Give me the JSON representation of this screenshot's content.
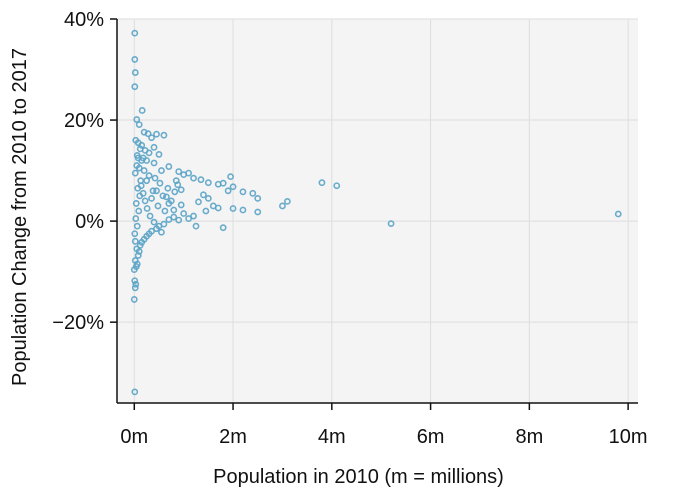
{
  "chart_data": {
    "type": "scatter",
    "title": "",
    "xlabel": "Population in 2010 (m = millions)",
    "ylabel": "Population Change from 2010 to 2017",
    "xlim": [
      -0.35,
      10.2
    ],
    "ylim": [
      -36,
      40
    ],
    "x_ticks": [
      0,
      2,
      4,
      6,
      8,
      10
    ],
    "x_tick_labels": [
      "0m",
      "2m",
      "4m",
      "6m",
      "8m",
      "10m"
    ],
    "y_ticks": [
      -20,
      0,
      20,
      40
    ],
    "y_tick_labels": [
      "−20%",
      "0%",
      "20%",
      "40%"
    ],
    "grid": true,
    "panel_background": "#f4f4f4",
    "grid_color": "#dddddd",
    "point_color": "#5aa3c6",
    "series": [
      {
        "points": [
          [
            0.01,
            37.2
          ],
          [
            0.01,
            32.0
          ],
          [
            0.02,
            29.4
          ],
          [
            0.01,
            26.6
          ],
          [
            0.16,
            21.9
          ],
          [
            0.05,
            20.1
          ],
          [
            0.1,
            19.1
          ],
          [
            0.2,
            17.6
          ],
          [
            0.28,
            17.3
          ],
          [
            0.45,
            17.2
          ],
          [
            0.6,
            17.0
          ],
          [
            0.35,
            16.5
          ],
          [
            0.03,
            16.0
          ],
          [
            0.08,
            15.5
          ],
          [
            0.15,
            15.0
          ],
          [
            0.4,
            14.6
          ],
          [
            0.12,
            14.3
          ],
          [
            0.22,
            14.0
          ],
          [
            0.3,
            13.5
          ],
          [
            0.5,
            13.2
          ],
          [
            0.06,
            13.0
          ],
          [
            0.18,
            12.5
          ],
          [
            0.25,
            12.0
          ],
          [
            0.4,
            11.5
          ],
          [
            0.7,
            10.8
          ],
          [
            0.1,
            10.5
          ],
          [
            0.55,
            10.0
          ],
          [
            0.9,
            9.8
          ],
          [
            1.0,
            9.2
          ],
          [
            1.1,
            9.5
          ],
          [
            1.2,
            8.5
          ],
          [
            1.35,
            8.2
          ],
          [
            0.85,
            8.0
          ],
          [
            1.5,
            7.6
          ],
          [
            1.7,
            7.3
          ],
          [
            1.8,
            7.5
          ],
          [
            1.95,
            8.8
          ],
          [
            2.0,
            6.8
          ],
          [
            1.9,
            6.0
          ],
          [
            2.2,
            5.8
          ],
          [
            2.4,
            5.5
          ],
          [
            2.5,
            4.5
          ],
          [
            1.4,
            5.2
          ],
          [
            1.5,
            4.5
          ],
          [
            1.3,
            3.8
          ],
          [
            1.6,
            3.0
          ],
          [
            1.7,
            2.6
          ],
          [
            2.0,
            2.5
          ],
          [
            2.2,
            2.2
          ],
          [
            2.5,
            1.8
          ],
          [
            1.2,
            1.0
          ],
          [
            1.45,
            2.0
          ],
          [
            1.8,
            -1.3
          ],
          [
            1.25,
            -1.0
          ],
          [
            1.1,
            0.5
          ],
          [
            1.0,
            1.5
          ],
          [
            0.95,
            3.2
          ],
          [
            0.8,
            2.2
          ],
          [
            0.7,
            3.5
          ],
          [
            0.65,
            4.8
          ],
          [
            3.0,
            3.0
          ],
          [
            3.1,
            3.9
          ],
          [
            3.8,
            7.6
          ],
          [
            4.1,
            7.0
          ],
          [
            5.2,
            -0.5
          ],
          [
            9.8,
            1.4
          ],
          [
            0.01,
            -33.8
          ],
          [
            0.0,
            -15.5
          ],
          [
            0.02,
            -13.2
          ],
          [
            0.03,
            -12.5
          ],
          [
            0.01,
            -11.8
          ],
          [
            0.0,
            -9.6
          ],
          [
            0.04,
            -9.0
          ],
          [
            0.06,
            -8.5
          ],
          [
            0.02,
            -7.8
          ],
          [
            0.08,
            -6.8
          ],
          [
            0.1,
            -6.0
          ],
          [
            0.05,
            -5.5
          ],
          [
            0.12,
            -4.8
          ],
          [
            0.15,
            -4.2
          ],
          [
            0.2,
            -3.6
          ],
          [
            0.25,
            -3.0
          ],
          [
            0.3,
            -2.5
          ],
          [
            0.35,
            -2.0
          ],
          [
            0.45,
            -1.5
          ],
          [
            0.5,
            -1.0
          ],
          [
            0.6,
            -0.6
          ],
          [
            0.55,
            -2.2
          ],
          [
            0.4,
            -0.2
          ],
          [
            0.7,
            0.3
          ],
          [
            0.8,
            0.8
          ],
          [
            0.9,
            0.2
          ],
          [
            0.02,
            -4.0
          ],
          [
            0.01,
            -2.5
          ],
          [
            0.06,
            -1.0
          ],
          [
            0.03,
            0.5
          ],
          [
            0.09,
            2.0
          ],
          [
            0.04,
            3.5
          ],
          [
            0.11,
            5.0
          ],
          [
            0.07,
            6.5
          ],
          [
            0.13,
            8.0
          ],
          [
            0.02,
            9.5
          ],
          [
            0.05,
            11.0
          ],
          [
            0.08,
            12.5
          ],
          [
            0.14,
            7.0
          ],
          [
            0.18,
            5.5
          ],
          [
            0.22,
            4.0
          ],
          [
            0.26,
            2.5
          ],
          [
            0.32,
            1.0
          ],
          [
            0.38,
            6.0
          ],
          [
            0.42,
            8.5
          ],
          [
            0.48,
            3.0
          ],
          [
            0.52,
            7.5
          ],
          [
            0.58,
            5.0
          ],
          [
            0.62,
            2.0
          ],
          [
            0.68,
            6.5
          ],
          [
            0.75,
            4.0
          ],
          [
            0.82,
            5.8
          ],
          [
            0.88,
            7.2
          ],
          [
            0.95,
            6.2
          ],
          [
            0.3,
            9.0
          ],
          [
            0.2,
            10.0
          ],
          [
            0.15,
            12.0
          ],
          [
            0.25,
            8.0
          ],
          [
            0.35,
            4.5
          ],
          [
            0.45,
            6.0
          ]
        ]
      }
    ]
  }
}
